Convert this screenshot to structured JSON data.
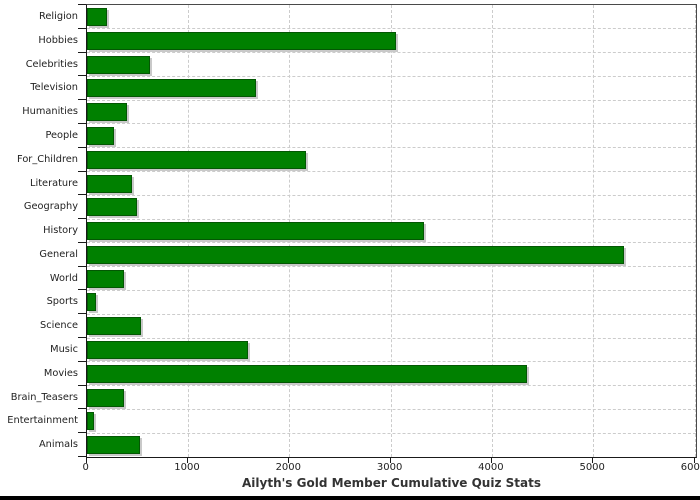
{
  "chart_data": {
    "type": "bar",
    "orientation": "horizontal",
    "title": "Ailyth's Gold Member Cumulative Quiz Stats",
    "categories": [
      "Religion",
      "Hobbies",
      "Celebrities",
      "Television",
      "Humanities",
      "People",
      "For_Children",
      "Literature",
      "Geography",
      "History",
      "General",
      "World",
      "Sports",
      "Science",
      "Music",
      "Movies",
      "Brain_Teasers",
      "Entertainment",
      "Animals"
    ],
    "values": [
      200,
      3050,
      620,
      1670,
      390,
      270,
      2160,
      440,
      490,
      3330,
      5300,
      370,
      90,
      530,
      1590,
      4340,
      370,
      70,
      520
    ],
    "xlabel": "",
    "ylabel": "",
    "xlim": [
      0,
      6000
    ],
    "x_ticks": [
      0,
      1000,
      2000,
      3000,
      4000,
      5000,
      6000
    ],
    "grid": "dashed",
    "legend": "none",
    "colors": {
      "bar_fill": "#008000",
      "bar_border": "#035703",
      "bar_shadow": "#c9c9c9",
      "grid_line": "#cccccc",
      "axis_line": "#1a1a1a",
      "label_text": "#222222",
      "title_text": "#333333",
      "background": "#ffffff"
    }
  }
}
